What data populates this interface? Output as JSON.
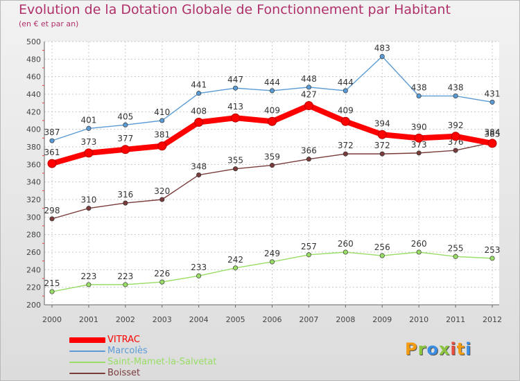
{
  "title": "Evolution de la Dotation Globale de Fonctionnement par Habitant",
  "subtitle": "(en € et par an)",
  "brand": {
    "letters": [
      "P",
      "r",
      "o",
      "x",
      "i",
      "t",
      "i"
    ],
    "colors": [
      "#f39c12",
      "#8cc63f",
      "#3a8ee6",
      "#8cc63f",
      "#e74c3c",
      "#f39c12",
      "#3a8ee6"
    ]
  },
  "chart_data": {
    "type": "line",
    "title": "Evolution de la Dotation Globale de Fonctionnement par Habitant",
    "subtitle": "(en € et par an)",
    "xlabel": "",
    "ylabel": "",
    "x": [
      "2000",
      "2001",
      "2002",
      "2003",
      "2004",
      "2005",
      "2006",
      "2007",
      "2008",
      "2009",
      "2010",
      "2011",
      "2012"
    ],
    "ylim": [
      200,
      500
    ],
    "yticks": [
      200,
      220,
      240,
      260,
      280,
      300,
      320,
      340,
      360,
      380,
      400,
      420,
      440,
      460,
      480,
      500
    ],
    "grid": true,
    "legend_position": "bottom-left",
    "series": [
      {
        "name": "VITRAC",
        "color": "#ff0000",
        "values": [
          361,
          373,
          377,
          381,
          408,
          413,
          409,
          427,
          409,
          394,
          390,
          392,
          384
        ],
        "labels": [
          "361",
          "373",
          "377",
          "381",
          "408",
          "413",
          "409",
          "427",
          "409",
          "394",
          "390",
          "392",
          "384"
        ]
      },
      {
        "name": "Marcolès",
        "color": "#5b9bd5",
        "values": [
          387,
          401,
          405,
          410,
          441,
          447,
          444,
          448,
          444,
          483,
          438,
          438,
          431
        ],
        "labels": [
          "387",
          "401",
          "405",
          "410",
          "441",
          "447",
          "444",
          "448",
          "444",
          "483",
          "438",
          "438",
          "431"
        ]
      },
      {
        "name": "Saint-Mamet-la-Salvetat",
        "color": "#99dd66",
        "values": [
          215,
          223,
          223,
          226,
          233,
          242,
          249,
          257,
          260,
          256,
          260,
          255,
          253
        ],
        "labels": [
          "215",
          "223",
          "223",
          "226",
          "233",
          "242",
          "249",
          "257",
          "260",
          "256",
          "260",
          "255",
          "253"
        ]
      },
      {
        "name": "Boisset",
        "color": "#7a3b3b",
        "values": [
          298,
          310,
          316,
          320,
          348,
          355,
          359,
          366,
          372,
          372,
          373,
          376,
          385
        ],
        "labels": [
          "298",
          "310",
          "316",
          "320",
          "348",
          "355",
          "359",
          "366",
          "372",
          "372",
          "373",
          "376",
          "385"
        ]
      }
    ]
  }
}
